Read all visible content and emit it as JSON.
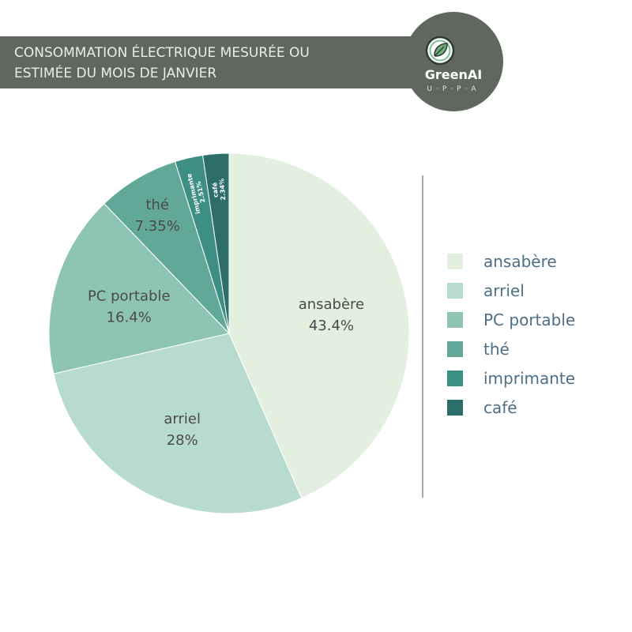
{
  "header": {
    "title_line1": "CONSOMMATION ÉLECTRIQUE MESURÉE OU",
    "title_line2": "ESTIMÉE DU MOIS DE JANVIER",
    "banner_color": "#5f675f"
  },
  "logo": {
    "name": "GreenAI",
    "subtitle": "U·P·P·A",
    "icon": "leaf-globe-icon"
  },
  "chart_data": {
    "type": "pie",
    "start_angle_deg": 0,
    "direction": "clockwise",
    "slices": [
      {
        "label": "ansabère",
        "percent": "43.4%",
        "value": 43.4,
        "color": "#e3efdf"
      },
      {
        "label": "arriel",
        "percent": "28%",
        "value": 28.0,
        "color": "#b7dbcf"
      },
      {
        "label": "PC portable",
        "percent": "16.4%",
        "value": 16.4,
        "color": "#8dc4b4"
      },
      {
        "label": "thé",
        "percent": "7.35%",
        "value": 7.35,
        "color": "#62a898"
      },
      {
        "label": "imprimante",
        "percent": "2.51%",
        "value": 2.51,
        "color": "#3e8f83"
      },
      {
        "label": "café",
        "percent": "2.34%",
        "value": 2.34,
        "color": "#2d6e6a"
      }
    ],
    "legend_position": "right"
  }
}
